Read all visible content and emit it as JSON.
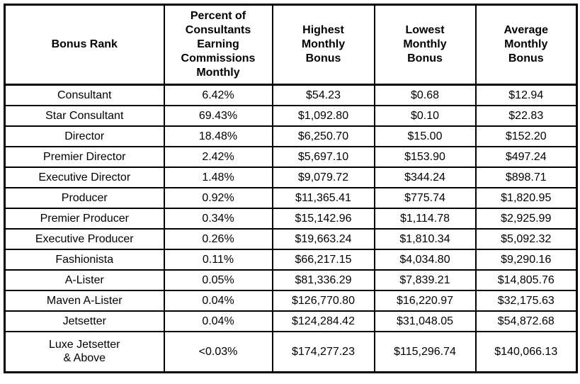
{
  "colors": {
    "border": "#000000",
    "text": "#000000",
    "background": "#ffffff"
  },
  "table": {
    "columns": [
      {
        "label": "Bonus Rank"
      },
      {
        "label": "Percent of\nConsultants\nEarning\nCommissions\nMonthly"
      },
      {
        "label": "Highest\nMonthly\nBonus"
      },
      {
        "label": "Lowest\nMonthly\nBonus"
      },
      {
        "label": "Average\nMonthly\nBonus"
      }
    ],
    "rows": [
      {
        "rank": "Consultant",
        "percent": "6.42%",
        "highest": "$54.23",
        "lowest": "$0.68",
        "average": "$12.94"
      },
      {
        "rank": "Star Consultant",
        "percent": "69.43%",
        "highest": "$1,092.80",
        "lowest": "$0.10",
        "average": "$22.83"
      },
      {
        "rank": "Director",
        "percent": "18.48%",
        "highest": "$6,250.70",
        "lowest": "$15.00",
        "average": "$152.20"
      },
      {
        "rank": "Premier Director",
        "percent": "2.42%",
        "highest": "$5,697.10",
        "lowest": "$153.90",
        "average": "$497.24"
      },
      {
        "rank": "Executive Director",
        "percent": "1.48%",
        "highest": "$9,079.72",
        "lowest": "$344.24",
        "average": "$898.71"
      },
      {
        "rank": "Producer",
        "percent": "0.92%",
        "highest": "$11,365.41",
        "lowest": "$775.74",
        "average": "$1,820.95"
      },
      {
        "rank": "Premier Producer",
        "percent": "0.34%",
        "highest": "$15,142.96",
        "lowest": "$1,114.78",
        "average": "$2,925.99"
      },
      {
        "rank": "Executive Producer",
        "percent": "0.26%",
        "highest": "$19,663.24",
        "lowest": "$1,810.34",
        "average": "$5,092.32"
      },
      {
        "rank": "Fashionista",
        "percent": "0.11%",
        "highest": "$66,217.15",
        "lowest": "$4,034.80",
        "average": "$9,290.16"
      },
      {
        "rank": "A-Lister",
        "percent": "0.05%",
        "highest": "$81,336.29",
        "lowest": "$7,839.21",
        "average": "$14,805.76"
      },
      {
        "rank": "Maven A-Lister",
        "percent": "0.04%",
        "highest": "$126,770.80",
        "lowest": "$16,220.97",
        "average": "$32,175.63"
      },
      {
        "rank": "Jetsetter",
        "percent": "0.04%",
        "highest": "$124,284.42",
        "lowest": "$31,048.05",
        "average": "$54,872.68"
      },
      {
        "rank": "Luxe Jetsetter\n& Above",
        "percent": "<0.03%",
        "highest": "$174,277.23",
        "lowest": "$115,296.74",
        "average": "$140,066.13"
      }
    ]
  }
}
